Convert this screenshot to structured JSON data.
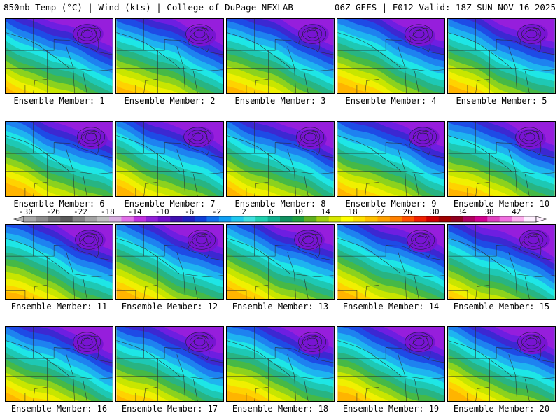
{
  "header": {
    "left_title": "850mb Temp (°C) | Wind (kts) | College of DuPage NEXLAB",
    "right_title": "06Z GEFS | F012 Valid: 18Z SUN NOV 16 2025"
  },
  "member_label_prefix": "Ensemble Member: ",
  "panels": [
    {
      "member": "1",
      "caption": "Ensemble Member: 1"
    },
    {
      "member": "2",
      "caption": "Ensemble Member: 2"
    },
    {
      "member": "3",
      "caption": "Ensemble Member: 3"
    },
    {
      "member": "4",
      "caption": "Ensemble Member: 4"
    },
    {
      "member": "5",
      "caption": "Ensemble Member: 5"
    },
    {
      "member": "6",
      "caption": "Ensemble Member: 6"
    },
    {
      "member": "7",
      "caption": "Ensemble Member: 7"
    },
    {
      "member": "8",
      "caption": "Ensemble Member: 8"
    },
    {
      "member": "9",
      "caption": "Ensemble Member: 9"
    },
    {
      "member": "10",
      "caption": "Ensemble Member: 10"
    },
    {
      "member": "11",
      "caption": "Ensemble Member: 11"
    },
    {
      "member": "12",
      "caption": "Ensemble Member: 12"
    },
    {
      "member": "13",
      "caption": "Ensemble Member: 13"
    },
    {
      "member": "14",
      "caption": "Ensemble Member: 14"
    },
    {
      "member": "15",
      "caption": "Ensemble Member: 15"
    },
    {
      "member": "16",
      "caption": "Ensemble Member: 16"
    },
    {
      "member": "17",
      "caption": "Ensemble Member: 17"
    },
    {
      "member": "18",
      "caption": "Ensemble Member: 18"
    },
    {
      "member": "19",
      "caption": "Ensemble Member: 19"
    },
    {
      "member": "20",
      "caption": "Ensemble Member: 20"
    }
  ],
  "colorbar": {
    "labels": [
      "-30",
      "-26",
      "-22",
      "-18",
      "-14",
      "-10",
      "-6",
      "-2",
      "2",
      "6",
      "10",
      "14",
      "18",
      "22",
      "26",
      "30",
      "34",
      "38",
      "42"
    ],
    "colors": [
      "#a8a8a8",
      "#8c8c8c",
      "#707070",
      "#5a5a5a",
      "#848484",
      "#a4a4a4",
      "#c0c0c0",
      "#d8b0e0",
      "#e070e8",
      "#c030e0",
      "#9020d8",
      "#7010c8",
      "#4010b0",
      "#2020c0",
      "#1040d8",
      "#1070ec",
      "#10a0f4",
      "#20c8f0",
      "#40e0e0",
      "#20d0b0",
      "#10b090",
      "#109060",
      "#20a040",
      "#60b020",
      "#a0d010",
      "#d8e800",
      "#ffff00",
      "#ffe000",
      "#ffc000",
      "#ffa000",
      "#ff8000",
      "#ff5000",
      "#f02000",
      "#d00000",
      "#a00000",
      "#900020",
      "#b00060",
      "#d00090",
      "#e040c0",
      "#f070e0",
      "#ffb0f0",
      "#fff0ff"
    ]
  },
  "map_palette": {
    "bands": [
      "#ffb400",
      "#ffd200",
      "#f0f000",
      "#c8e600",
      "#8cd21e",
      "#46b946",
      "#28b482",
      "#1ec8b4",
      "#1ee6e6",
      "#1eb4f0",
      "#1e82f0",
      "#1e4be6",
      "#3c28d2",
      "#6e1ee1",
      "#961edc"
    ],
    "base_bands": [
      12.0,
      11.5,
      11.6,
      11.3,
      11.8,
      11.2,
      11.5,
      11.6,
      11.4,
      11.3,
      11.7,
      11.6,
      11.4,
      11.5,
      12.5,
      11.5,
      11.8,
      11.2,
      11.6,
      11.4
    ]
  }
}
